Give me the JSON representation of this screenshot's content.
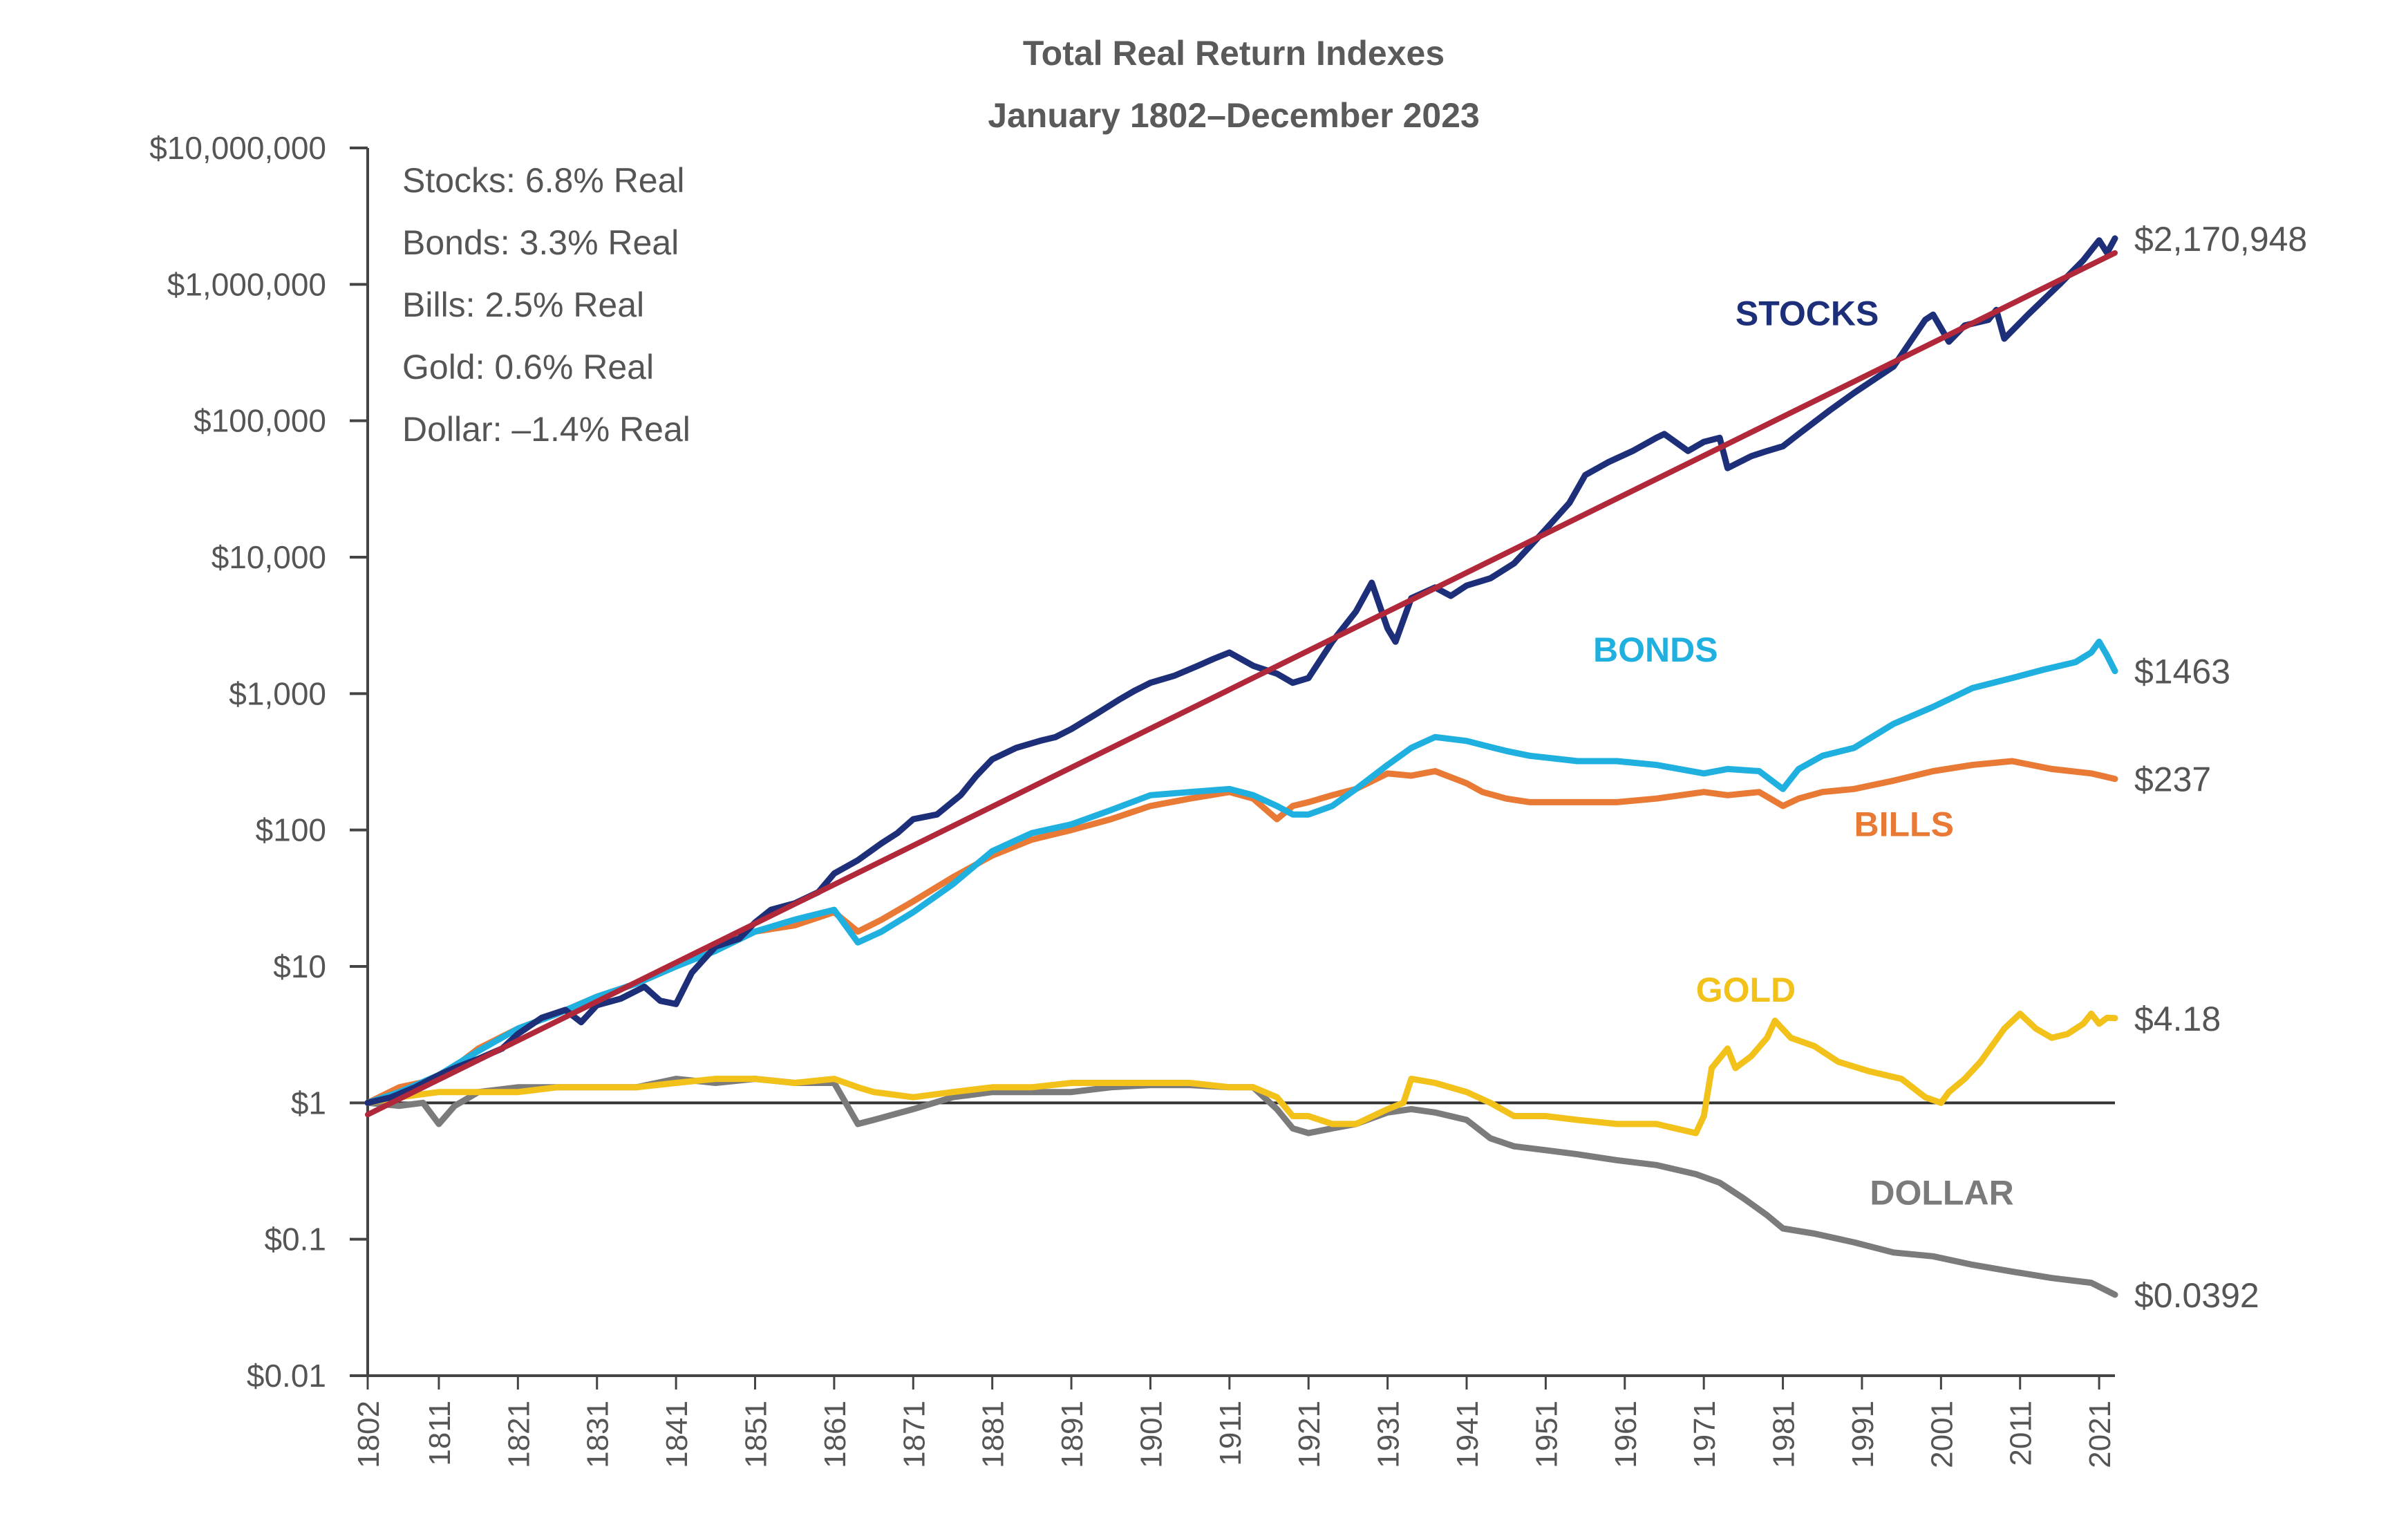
{
  "chart_data": {
    "type": "line",
    "title": "Total Real Return Indexes",
    "subtitle": "January 1802–December 2023",
    "xlabel": "",
    "ylabel": "",
    "y_scale": "log",
    "ylim": [
      0.01,
      10000000
    ],
    "xlim": [
      1802,
      2023
    ],
    "y_ticks": [
      {
        "value": 10000000,
        "label": "$10,000,000"
      },
      {
        "value": 1000000,
        "label": "$1,000,000"
      },
      {
        "value": 100000,
        "label": "$100,000"
      },
      {
        "value": 10000,
        "label": "$10,000"
      },
      {
        "value": 1000,
        "label": "$1,000"
      },
      {
        "value": 100,
        "label": "$100"
      },
      {
        "value": 10,
        "label": "$10"
      },
      {
        "value": 1,
        "label": "$1"
      },
      {
        "value": 0.1,
        "label": "$0.1"
      },
      {
        "value": 0.01,
        "label": "$0.01"
      }
    ],
    "x_ticks": [
      {
        "value": 1802,
        "label": "1802"
      },
      {
        "value": 1811,
        "label": "1811"
      },
      {
        "value": 1821,
        "label": "1821"
      },
      {
        "value": 1831,
        "label": "1831"
      },
      {
        "value": 1841,
        "label": "1841"
      },
      {
        "value": 1851,
        "label": "1851"
      },
      {
        "value": 1861,
        "label": "1861"
      },
      {
        "value": 1871,
        "label": "1871"
      },
      {
        "value": 1881,
        "label": "1881"
      },
      {
        "value": 1891,
        "label": "1891"
      },
      {
        "value": 1901,
        "label": "1901"
      },
      {
        "value": 1911,
        "label": "1911"
      },
      {
        "value": 1921,
        "label": "1921"
      },
      {
        "value": 1931,
        "label": "1931"
      },
      {
        "value": 1941,
        "label": "1941"
      },
      {
        "value": 1951,
        "label": "1951"
      },
      {
        "value": 1961,
        "label": "1961"
      },
      {
        "value": 1971,
        "label": "1971"
      },
      {
        "value": 1981,
        "label": "1981"
      },
      {
        "value": 1991,
        "label": "1991"
      },
      {
        "value": 2001,
        "label": "2001"
      },
      {
        "value": 2011,
        "label": "2011"
      },
      {
        "value": 2021,
        "label": "2021"
      }
    ],
    "legend": {
      "placement": "top-left",
      "lines": [
        "Stocks: 6.8% Real",
        "Bonds: 3.3% Real",
        "Bills: 2.5% Real",
        "Gold: 0.6% Real",
        "Dollar: –1.4% Real"
      ]
    },
    "reference_line": {
      "value": 1,
      "color": "#333333"
    },
    "trend_line": {
      "name": "Stocks trend",
      "color": "#b0283a",
      "x": [
        1802,
        2023
      ],
      "y": [
        0.82,
        1700000
      ]
    },
    "series": [
      {
        "name": "Stocks",
        "label": "STOCKS",
        "color": "#1e2f7a",
        "label_color": "#1e2f7a",
        "end_label": "$2,170,948",
        "x": [
          1802,
          1805,
          1808,
          1811,
          1813,
          1816,
          1819,
          1821,
          1824,
          1827,
          1829,
          1831,
          1834,
          1837,
          1839,
          1841,
          1843,
          1846,
          1849,
          1851,
          1853,
          1856,
          1859,
          1861,
          1864,
          1867,
          1869,
          1871,
          1874,
          1877,
          1879,
          1881,
          1884,
          1887,
          1889,
          1891,
          1894,
          1897,
          1899,
          1901,
          1904,
          1907,
          1909,
          1911,
          1914,
          1917,
          1919,
          1921,
          1924,
          1927,
          1929,
          1931,
          1932,
          1934,
          1937,
          1939,
          1941,
          1944,
          1947,
          1949,
          1951,
          1954,
          1956,
          1959,
          1962,
          1965,
          1966,
          1969,
          1971,
          1973,
          1974,
          1977,
          1979,
          1981,
          1983,
          1987,
          1990,
          1995,
          1999,
          2000,
          2002,
          2004,
          2007,
          2008,
          2009,
          2012,
          2016,
          2019,
          2021,
          2022,
          2023
        ],
        "values": [
          1,
          1.1,
          1.3,
          1.6,
          1.8,
          2.1,
          2.5,
          3.2,
          4.2,
          4.8,
          3.9,
          5.2,
          5.8,
          7.1,
          5.6,
          5.3,
          9,
          14,
          16,
          21,
          26,
          29,
          35,
          48,
          60,
          80,
          95,
          120,
          130,
          180,
          250,
          330,
          400,
          450,
          480,
          550,
          700,
          900,
          1050,
          1200,
          1350,
          1600,
          1800,
          2000,
          1600,
          1400,
          1200,
          1300,
          2400,
          4000,
          6500,
          3000,
          2400,
          5000,
          6000,
          5200,
          6200,
          7000,
          9000,
          12000,
          16000,
          25000,
          40000,
          50000,
          60000,
          75000,
          80000,
          60000,
          70000,
          75000,
          45000,
          55000,
          60000,
          65000,
          80000,
          120000,
          160000,
          250000,
          550000,
          600000,
          380000,
          500000,
          550000,
          650000,
          400000,
          600000,
          1000000,
          1500000,
          2100000,
          1700000,
          2170948
        ]
      },
      {
        "name": "Bonds",
        "label": "BONDS",
        "color": "#1fb0e0",
        "label_color": "#1fb0e0",
        "end_label": "$1463",
        "x": [
          1802,
          1806,
          1811,
          1816,
          1821,
          1826,
          1831,
          1836,
          1841,
          1846,
          1851,
          1856,
          1861,
          1864,
          1867,
          1871,
          1876,
          1881,
          1886,
          1891,
          1896,
          1901,
          1906,
          1911,
          1914,
          1917,
          1919,
          1921,
          1924,
          1927,
          1931,
          1934,
          1937,
          1941,
          1943,
          1946,
          1949,
          1951,
          1955,
          1960,
          1965,
          1971,
          1974,
          1978,
          1981,
          1983,
          1986,
          1990,
          1995,
          2000,
          2005,
          2010,
          2014,
          2018,
          2020,
          2021,
          2022,
          2023
        ],
        "values": [
          1,
          1.2,
          1.6,
          2.4,
          3.5,
          4.5,
          6,
          7.5,
          10,
          13,
          18,
          22,
          26,
          15,
          18,
          25,
          40,
          70,
          95,
          110,
          140,
          180,
          190,
          200,
          180,
          150,
          130,
          130,
          150,
          200,
          300,
          400,
          480,
          450,
          420,
          380,
          350,
          340,
          320,
          320,
          300,
          260,
          280,
          270,
          200,
          280,
          350,
          400,
          600,
          800,
          1100,
          1300,
          1500,
          1700,
          2000,
          2400,
          1900,
          1463
        ]
      },
      {
        "name": "Bills",
        "label": "BILLS",
        "color": "#e87a36",
        "label_color": "#e87a36",
        "end_label": "$237",
        "x": [
          1802,
          1806,
          1811,
          1816,
          1821,
          1826,
          1831,
          1836,
          1841,
          1846,
          1851,
          1856,
          1861,
          1864,
          1867,
          1871,
          1876,
          1881,
          1886,
          1891,
          1896,
          1901,
          1906,
          1911,
          1914,
          1917,
          1919,
          1921,
          1924,
          1927,
          1931,
          1934,
          1937,
          1941,
          1943,
          1946,
          1949,
          1951,
          1955,
          1960,
          1965,
          1971,
          1974,
          1978,
          1981,
          1983,
          1986,
          1990,
          1995,
          2000,
          2005,
          2010,
          2015,
          2020,
          2023
        ],
        "values": [
          1,
          1.3,
          1.5,
          2.5,
          3.5,
          4.5,
          6,
          7.5,
          10,
          14,
          18,
          20,
          25,
          18,
          22,
          30,
          45,
          65,
          85,
          100,
          120,
          150,
          170,
          190,
          170,
          120,
          150,
          160,
          180,
          200,
          260,
          250,
          270,
          220,
          190,
          170,
          160,
          160,
          160,
          160,
          170,
          190,
          180,
          190,
          150,
          170,
          190,
          200,
          230,
          270,
          300,
          320,
          280,
          260,
          237
        ]
      },
      {
        "name": "Gold",
        "label": "GOLD",
        "color": "#f2c11a",
        "label_color": "#f2c11a",
        "end_label": "$4.18",
        "x": [
          1802,
          1806,
          1811,
          1816,
          1821,
          1826,
          1831,
          1836,
          1841,
          1846,
          1851,
          1856,
          1861,
          1864,
          1866,
          1871,
          1876,
          1881,
          1886,
          1891,
          1896,
          1901,
          1906,
          1911,
          1914,
          1917,
          1919,
          1921,
          1924,
          1927,
          1931,
          1933,
          1934,
          1937,
          1941,
          1944,
          1947,
          1949,
          1951,
          1955,
          1960,
          1965,
          1970,
          1971,
          1972,
          1974,
          1975,
          1977,
          1979,
          1980,
          1982,
          1985,
          1988,
          1992,
          1996,
          1999,
          2001,
          2002,
          2004,
          2006,
          2009,
          2011,
          2013,
          2015,
          2017,
          2019,
          2020,
          2021,
          2022,
          2023
        ],
        "values": [
          1,
          1.1,
          1.2,
          1.2,
          1.2,
          1.3,
          1.3,
          1.3,
          1.4,
          1.5,
          1.5,
          1.4,
          1.5,
          1.3,
          1.2,
          1.1,
          1.2,
          1.3,
          1.3,
          1.4,
          1.4,
          1.4,
          1.4,
          1.3,
          1.3,
          1.1,
          0.8,
          0.8,
          0.7,
          0.7,
          0.9,
          1,
          1.5,
          1.4,
          1.2,
          1,
          0.8,
          0.8,
          0.8,
          0.75,
          0.7,
          0.7,
          0.6,
          0.8,
          1.8,
          2.5,
          1.8,
          2.2,
          3,
          4,
          3,
          2.6,
          2,
          1.7,
          1.5,
          1.1,
          1,
          1.2,
          1.5,
          2,
          3.5,
          4.5,
          3.5,
          3,
          3.2,
          3.8,
          4.5,
          3.8,
          4.2,
          4.18
        ]
      },
      {
        "name": "Dollar",
        "label": "DOLLAR",
        "color": "#7b7b7b",
        "label_color": "#7b7b7b",
        "end_label": "$0.0392",
        "x": [
          1802,
          1806,
          1809,
          1811,
          1813,
          1816,
          1821,
          1826,
          1831,
          1836,
          1841,
          1846,
          1851,
          1856,
          1861,
          1864,
          1866,
          1871,
          1876,
          1881,
          1886,
          1891,
          1896,
          1901,
          1906,
          1911,
          1914,
          1917,
          1919,
          1921,
          1924,
          1927,
          1931,
          1934,
          1937,
          1941,
          1944,
          1947,
          1951,
          1955,
          1960,
          1965,
          1970,
          1973,
          1976,
          1979,
          1981,
          1985,
          1990,
          1995,
          2000,
          2005,
          2010,
          2015,
          2020,
          2023
        ],
        "values": [
          1,
          0.95,
          1,
          0.7,
          0.95,
          1.2,
          1.3,
          1.3,
          1.3,
          1.3,
          1.5,
          1.4,
          1.5,
          1.4,
          1.4,
          0.7,
          0.75,
          0.9,
          1.1,
          1.2,
          1.2,
          1.2,
          1.3,
          1.35,
          1.35,
          1.3,
          1.3,
          0.9,
          0.65,
          0.6,
          0.65,
          0.7,
          0.85,
          0.9,
          0.85,
          0.75,
          0.55,
          0.48,
          0.45,
          0.42,
          0.38,
          0.35,
          0.3,
          0.26,
          0.2,
          0.15,
          0.12,
          0.11,
          0.095,
          0.08,
          0.075,
          0.065,
          0.058,
          0.052,
          0.048,
          0.0392
        ]
      }
    ]
  }
}
